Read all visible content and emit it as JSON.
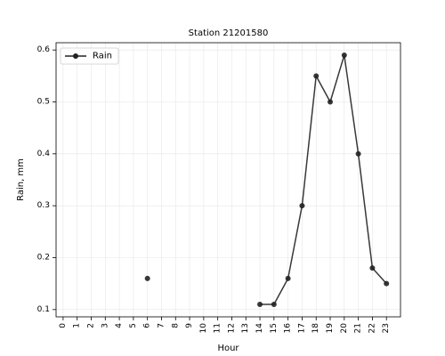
{
  "chart_data": {
    "type": "line",
    "title": "Station 21201580",
    "xlabel": "Hour",
    "ylabel": "Rain, mm",
    "x_ticks": [
      "0",
      "1",
      "2",
      "3",
      "4",
      "5",
      "6",
      "7",
      "8",
      "9",
      "10",
      "11",
      "12",
      "13",
      "14",
      "15",
      "16",
      "17",
      "18",
      "19",
      "20",
      "21",
      "22",
      "23"
    ],
    "y_ticks": [
      "0.1",
      "0.2",
      "0.3",
      "0.4",
      "0.5",
      "0.6"
    ],
    "xlim": [
      -0.5,
      24
    ],
    "ylim": [
      0.086,
      0.614
    ],
    "grid": true,
    "legend_position": "top-left",
    "series": [
      {
        "name": "Rain",
        "color": "#222222",
        "x": [
          0,
          1,
          2,
          3,
          4,
          5,
          6,
          7,
          8,
          9,
          10,
          11,
          12,
          13,
          14,
          15,
          16,
          17,
          18,
          19,
          20,
          21,
          22,
          23
        ],
        "y": [
          null,
          null,
          null,
          null,
          null,
          null,
          0.16,
          null,
          null,
          null,
          null,
          null,
          null,
          null,
          0.11,
          0.11,
          0.16,
          0.3,
          0.55,
          0.5,
          0.59,
          0.4,
          0.18,
          0.15
        ]
      }
    ]
  }
}
